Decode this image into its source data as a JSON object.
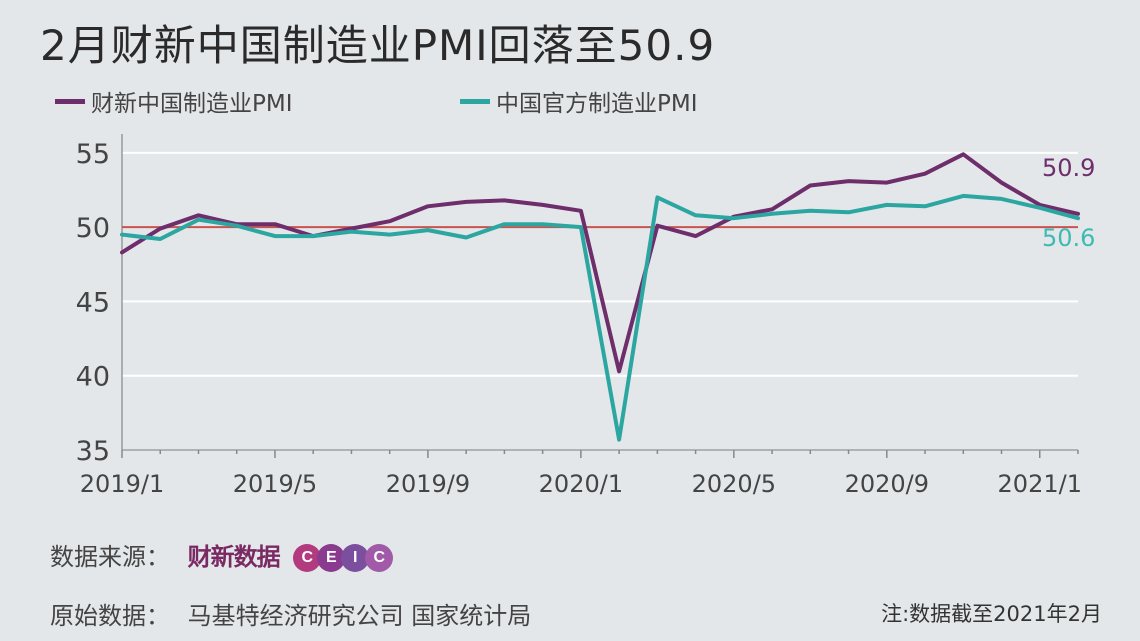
{
  "title": "2月财新中国制造业PMI回落至50.9",
  "legend": [
    {
      "label": "财新中国制造业PMI",
      "color": "#6e2d6b"
    },
    {
      "label": "中国官方制造业PMI",
      "color": "#2ca6a0"
    }
  ],
  "chart_data": {
    "type": "line",
    "x": [
      "2019/1",
      "2019/2",
      "2019/3",
      "2019/4",
      "2019/5",
      "2019/6",
      "2019/7",
      "2019/8",
      "2019/9",
      "2019/10",
      "2019/11",
      "2019/12",
      "2020/1",
      "2020/2",
      "2020/3",
      "2020/4",
      "2020/5",
      "2020/6",
      "2020/7",
      "2020/8",
      "2020/9",
      "2020/10",
      "2020/11",
      "2020/12",
      "2021/1",
      "2021/2"
    ],
    "xticks": [
      "2019/1",
      "2019/5",
      "2019/9",
      "2020/1",
      "2020/5",
      "2020/9",
      "2021/1"
    ],
    "ylim": [
      35,
      56
    ],
    "yticks": [
      35,
      40,
      45,
      50,
      55
    ],
    "reference_line": {
      "value": 50,
      "color": "#c9534f"
    },
    "series": [
      {
        "name": "财新中国制造业PMI",
        "color": "#6e2d6b",
        "values": [
          48.3,
          49.9,
          50.8,
          50.2,
          50.2,
          49.4,
          49.9,
          50.4,
          51.4,
          51.7,
          51.8,
          51.5,
          51.1,
          40.3,
          50.1,
          49.4,
          50.7,
          51.2,
          52.8,
          53.1,
          53.0,
          53.6,
          54.9,
          53.0,
          51.5,
          50.9
        ],
        "end_label": "50.9",
        "end_label_color": "#6e2d6b"
      },
      {
        "name": "中国官方制造业PMI",
        "color": "#2ca6a0",
        "values": [
          49.5,
          49.2,
          50.5,
          50.1,
          49.4,
          49.4,
          49.7,
          49.5,
          49.8,
          49.3,
          50.2,
          50.2,
          50.0,
          35.7,
          52.0,
          50.8,
          50.6,
          50.9,
          51.1,
          51.0,
          51.5,
          51.4,
          52.1,
          51.9,
          51.3,
          50.6
        ],
        "end_label": "50.6",
        "end_label_color": "#3dbbb3"
      }
    ]
  },
  "footer": {
    "source_label": "数据来源：",
    "source_logo_caixin": "财新数据",
    "source_logo_ceic": [
      "C",
      "E",
      "I",
      "C"
    ],
    "source_logo_ceic_colors": [
      "#b23a7e",
      "#8a3b8f",
      "#7b4e9e",
      "#a05aa8"
    ],
    "origin_label": "原始数据：",
    "origin_value": "马基特经济研究公司  国家统计局",
    "note": "注:数据截至2021年2月"
  }
}
